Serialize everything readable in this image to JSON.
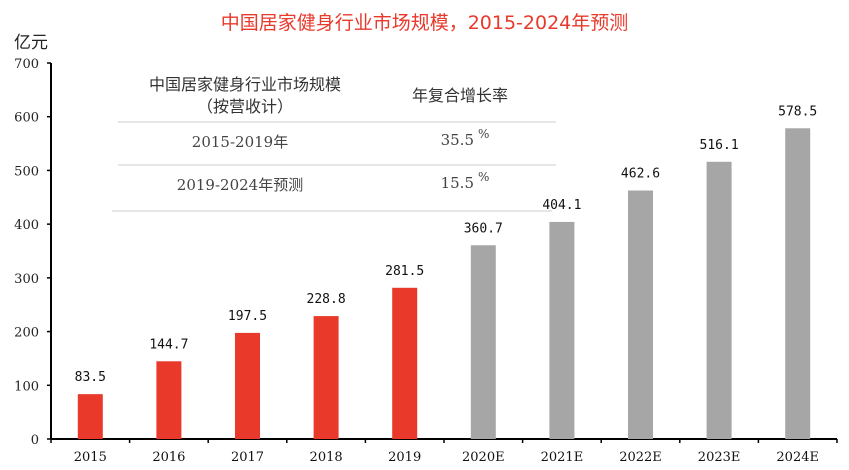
{
  "chart_data": {
    "type": "bar",
    "title": "中国居家健身行业市场规模，2015-2024年预测",
    "ylabel": "亿元",
    "xlabel": "",
    "ylim": [
      0,
      700
    ],
    "yticks": [
      0,
      100,
      200,
      300,
      400,
      500,
      600,
      700
    ],
    "grid": false,
    "categories": [
      "2015",
      "2016",
      "2017",
      "2018",
      "2019",
      "2020E",
      "2021E",
      "2022E",
      "2023E",
      "2024E"
    ],
    "values": [
      83.5,
      144.7,
      197.5,
      228.8,
      281.5,
      360.7,
      404.1,
      462.6,
      516.1,
      578.5
    ],
    "value_labels": [
      "83.5",
      "144.7",
      "197.5",
      "228.8",
      "281.5",
      "360.7",
      "404.1",
      "462.6",
      "516.1",
      "578.5"
    ],
    "series_colors": {
      "actual": "#e8392b",
      "forecast": "#a6a6a6"
    },
    "bar_kind": [
      "actual",
      "actual",
      "actual",
      "actual",
      "actual",
      "forecast",
      "forecast",
      "forecast",
      "forecast",
      "forecast"
    ]
  },
  "inset_table": {
    "header_left_line1": "中国居家健身行业市场规模",
    "header_left_line2": "（按营收计）",
    "header_right": "年复合增长率",
    "rows": [
      {
        "period": "2015-2019年",
        "cagr": "35.5",
        "unit": "%"
      },
      {
        "period": "2019-2024年预测",
        "cagr": "15.5",
        "unit": "%"
      }
    ]
  }
}
